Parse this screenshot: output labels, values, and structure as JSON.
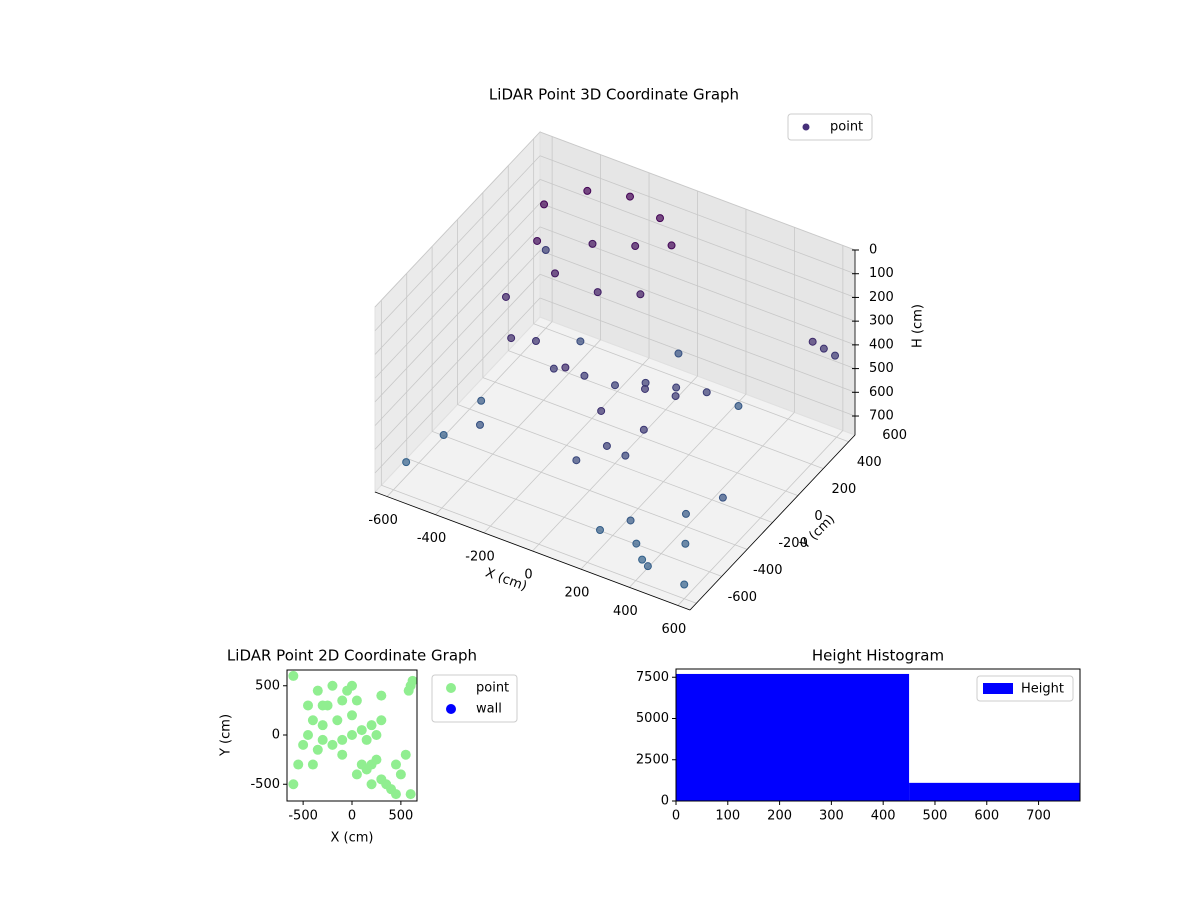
{
  "chart_data": [
    {
      "type": "scatter3d",
      "title": "LiDAR Point 3D Coordinate Graph",
      "x_label": "X (cm)",
      "y_label": "Y (cm)",
      "z_label": "H (cm)",
      "xlim": [
        -650,
        650
      ],
      "ylim": [
        -650,
        650
      ],
      "zlim": [
        780,
        0
      ],
      "xticks": [
        -600,
        -400,
        -200,
        0,
        200,
        400,
        600
      ],
      "yticks": [
        -600,
        -400,
        -200,
        0,
        200,
        400,
        600
      ],
      "zticks": [
        0,
        100,
        200,
        300,
        400,
        500,
        600,
        700
      ],
      "cmap": [
        "#440154",
        "#31688e"
      ],
      "legend": "upper right",
      "series": [
        {
          "name": "point",
          "color": "#46307a",
          "x": [
            -450,
            -350,
            -200,
            -50,
            50,
            -400,
            -300,
            -150,
            0,
            -250,
            -100,
            -300,
            -200,
            -100,
            0,
            100,
            200,
            300,
            -350,
            -450,
            150,
            250,
            100,
            150,
            200,
            250,
            50,
            300,
            350,
            400,
            200,
            450,
            500,
            550,
            -550,
            -600,
            -500,
            -400,
            600,
            620,
            580,
            -600,
            600,
            450,
            -300,
            0,
            300,
            -100
          ],
          "y": [
            300,
            450,
            500,
            450,
            350,
            150,
            100,
            150,
            200,
            300,
            350,
            -50,
            -100,
            -50,
            0,
            50,
            100,
            150,
            -150,
            0,
            -50,
            0,
            -300,
            -350,
            -300,
            -250,
            -400,
            -450,
            -500,
            -550,
            -500,
            -300,
            -400,
            -200,
            -300,
            -500,
            -100,
            -300,
            500,
            550,
            450,
            600,
            -600,
            -600,
            300,
            500,
            400,
            -200
          ],
          "z": [
            30,
            20,
            15,
            20,
            40,
            80,
            150,
            200,
            180,
            120,
            100,
            350,
            400,
            420,
            450,
            430,
            440,
            450,
            300,
            250,
            380,
            400,
            350,
            450,
            500,
            400,
            520,
            650,
            700,
            720,
            700,
            650,
            700,
            600,
            700,
            720,
            650,
            600,
            350,
            400,
            300,
            450,
            720,
            700,
            550,
            600,
            650,
            300
          ]
        }
      ]
    },
    {
      "type": "scatter",
      "title": "LiDAR Point 2D Coordinate Graph",
      "x_label": "X (cm)",
      "y_label": "Y (cm)",
      "xlim": [
        -665,
        665
      ],
      "ylim": [
        -670,
        660
      ],
      "xticks": [
        -500,
        0,
        500
      ],
      "yticks": [
        -500,
        0,
        500
      ],
      "legend": "outside right",
      "series": [
        {
          "name": "point",
          "color": "#90ee90",
          "x": [
            -450,
            -350,
            -200,
            -50,
            50,
            -400,
            -300,
            -150,
            0,
            -250,
            -100,
            -300,
            -200,
            -100,
            0,
            100,
            200,
            300,
            -350,
            -450,
            150,
            250,
            100,
            150,
            200,
            250,
            50,
            300,
            350,
            400,
            200,
            450,
            500,
            550,
            -550,
            -600,
            -500,
            -400,
            600,
            620,
            580,
            -600,
            600,
            450,
            -300,
            0,
            300,
            -100
          ],
          "y": [
            300,
            450,
            500,
            450,
            350,
            150,
            100,
            150,
            200,
            300,
            350,
            -50,
            -100,
            -50,
            0,
            50,
            100,
            150,
            -150,
            0,
            -50,
            0,
            -300,
            -350,
            -300,
            -250,
            -400,
            -450,
            -500,
            -550,
            -500,
            -300,
            -400,
            -200,
            -300,
            -500,
            -100,
            -300,
            500,
            550,
            450,
            600,
            -600,
            -600,
            300,
            500,
            400,
            -200
          ]
        },
        {
          "name": "wall",
          "color": "#0000ff",
          "x": [],
          "y": []
        }
      ]
    },
    {
      "type": "histogram",
      "title": "Height Histogram",
      "bins": [
        0,
        450,
        780
      ],
      "values": [
        7700,
        1100
      ],
      "color": "#0000ff",
      "xlim": [
        0,
        780
      ],
      "ylim": [
        0,
        8000
      ],
      "xticks": [
        0,
        100,
        200,
        300,
        400,
        500,
        600,
        700
      ],
      "yticks": [
        0,
        2500,
        5000,
        7500
      ],
      "legend": "upper right",
      "series_name": "Height"
    }
  ]
}
